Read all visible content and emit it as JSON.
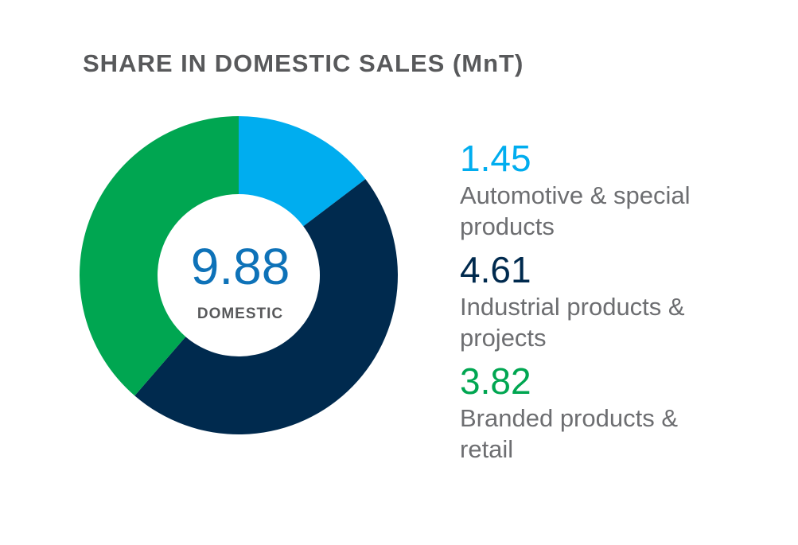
{
  "chart_data": {
    "type": "pie",
    "title": "SHARE IN DOMESTIC SALES (MnT)",
    "total": "9.88",
    "total_label": "DOMESTIC",
    "categories": [
      "Automotive & special products",
      "Industrial products & projects",
      "Branded products & retail"
    ],
    "values": [
      1.45,
      4.61,
      3.82
    ],
    "value_labels": [
      "1.45",
      "4.61",
      "3.82"
    ],
    "colors": [
      "#00adef",
      "#002a4e",
      "#00a651"
    ],
    "legend_placement": "right",
    "donut": true
  },
  "legend": [
    {
      "value": "1.45",
      "label": "Automotive & special products",
      "color": "#00adef"
    },
    {
      "value": "4.61",
      "label": "Industrial products & projects",
      "color": "#002a4e"
    },
    {
      "value": "3.82",
      "label": "Branded products & retail",
      "color": "#00a651"
    }
  ]
}
